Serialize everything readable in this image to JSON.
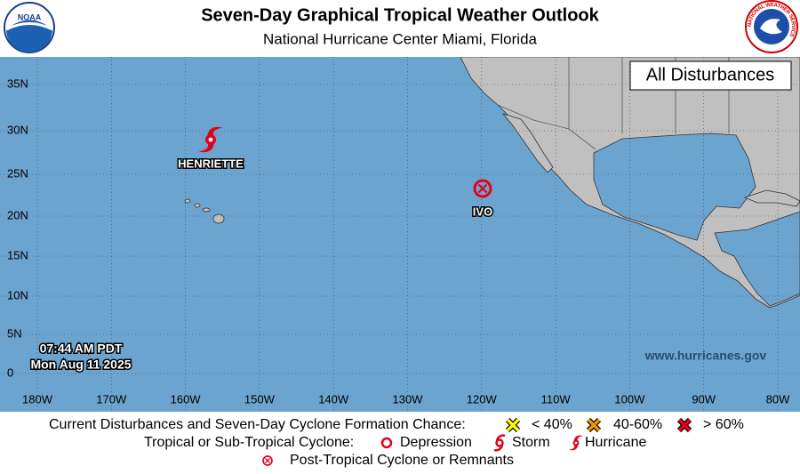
{
  "header": {
    "title": "Seven-Day Graphical Tropical Weather Outlook",
    "subtitle": "National Hurricane Center  Miami, Florida",
    "noaa_logo": "NOAA",
    "nws_logo": "NATIONAL WEATHER SERVICE"
  },
  "map": {
    "panel_label": "All Disturbances",
    "latitude_labels": [
      "35N",
      "30N",
      "25N",
      "20N",
      "15N",
      "10N",
      "5N",
      "0"
    ],
    "longitude_labels": [
      "180W",
      "170W",
      "160W",
      "150W",
      "140W",
      "130W",
      "120W",
      "110W",
      "100W",
      "90W",
      "80W"
    ],
    "systems": [
      "HENRIETTE",
      "IVO"
    ],
    "timestamp": {
      "time": "07:44 AM PDT",
      "date": "Mon Aug 11 2025"
    },
    "website": "www.hurricanes.gov"
  },
  "legend": {
    "formation_label": "Current Disturbances and Seven-Day Cyclone Formation Chance:",
    "formation_chances": [
      "< 40%",
      "40-60%",
      "> 60%"
    ],
    "cyclone_label": "Tropical or Sub-Tropical Cyclone:",
    "cyclone_types": [
      "Depression",
      "Storm",
      "Hurricane"
    ],
    "post_tropical": "Post-Tropical Cyclone or Remnants"
  }
}
